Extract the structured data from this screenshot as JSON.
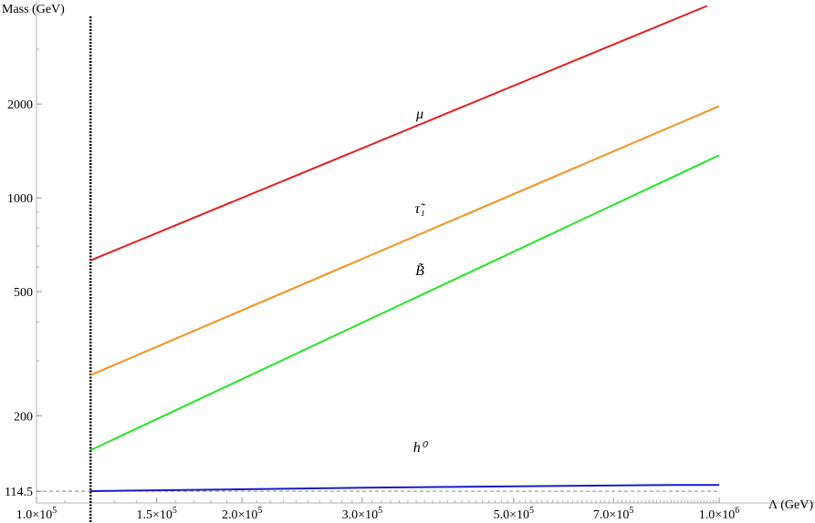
{
  "chart_data": {
    "type": "line",
    "title": "",
    "xlabel": "Λ (GeV)",
    "ylabel": "Mass (GeV)",
    "xscale": "log",
    "yscale": "log",
    "xlim": [
      100000,
      1000000
    ],
    "ylim": [
      105,
      4200
    ],
    "grid": false,
    "legend": "none (labels placed next to lines)",
    "x_ticks": [
      {
        "value": 100000,
        "label": "1.0×10^5"
      },
      {
        "value": 150000,
        "label": "1.5×10^5"
      },
      {
        "value": 200000,
        "label": "2.0×10^5"
      },
      {
        "value": 300000,
        "label": "3.0×10^5"
      },
      {
        "value": 500000,
        "label": "5.0×10^5"
      },
      {
        "value": 700000,
        "label": "7.0×10^5"
      },
      {
        "value": 1000000,
        "label": "1.0×10^6"
      }
    ],
    "y_ticks": [
      {
        "value": 114.5,
        "label": "114.5"
      },
      {
        "value": 200,
        "label": "200"
      },
      {
        "value": 500,
        "label": "500"
      },
      {
        "value": 1000,
        "label": "1000"
      },
      {
        "value": 2000,
        "label": "2000"
      }
    ],
    "series": [
      {
        "name": "μ",
        "color": "#e51e1e",
        "x": [
          120000,
          960000
        ],
        "values": [
          630,
          4130
        ]
      },
      {
        "name": "τ̃₁",
        "color": "#f5901e",
        "x": [
          120000,
          1000000
        ],
        "values": [
          270,
          1970
        ]
      },
      {
        "name": "B̃",
        "color": "#22e622",
        "x": [
          120000,
          1000000
        ],
        "values": [
          155,
          1370
        ]
      },
      {
        "name": "h⁰",
        "color": "#1a1ac8",
        "x": [
          120000,
          300000,
          600000,
          850000,
          1000000
        ],
        "values": [
          114.6,
          117.5,
          119.2,
          119.9,
          120.0
        ]
      }
    ],
    "reference_lines": [
      {
        "orientation": "horizontal",
        "value": 114.5,
        "style": "dashed",
        "color": "#888888"
      },
      {
        "orientation": "vertical",
        "value": 120000,
        "style": "dotted",
        "color": "#000000"
      }
    ]
  }
}
